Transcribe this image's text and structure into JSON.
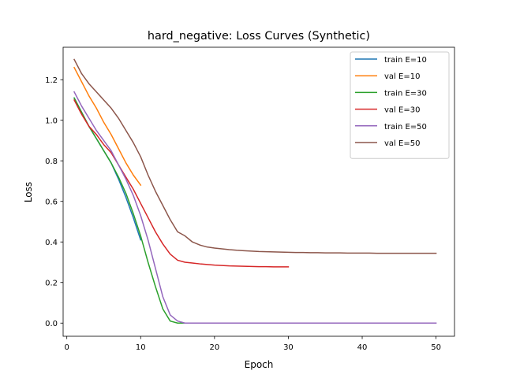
{
  "chart_data": {
    "type": "line",
    "title": "hard_negative: Loss Curves (Synthetic)",
    "xlabel": "Epoch",
    "ylabel": "Loss",
    "xlim": [
      -0.5,
      52.5
    ],
    "ylim": [
      -0.065,
      1.36
    ],
    "xticks": [
      0,
      10,
      20,
      30,
      40,
      50
    ],
    "xtick_labels": [
      "0",
      "10",
      "20",
      "30",
      "40",
      "50"
    ],
    "yticks": [
      0.0,
      0.2,
      0.4,
      0.6,
      0.8,
      1.0,
      1.2
    ],
    "ytick_labels": [
      "0.0",
      "0.2",
      "0.4",
      "0.6",
      "0.8",
      "1.0",
      "1.2"
    ],
    "grid": false,
    "legend_position": "upper right",
    "series": [
      {
        "name": "train E=10",
        "color": "#1f77b4",
        "x": [
          1,
          2,
          3,
          4,
          5,
          6,
          7,
          8,
          9,
          10
        ],
        "y": [
          1.11,
          1.04,
          0.97,
          0.91,
          0.85,
          0.79,
          0.71,
          0.62,
          0.52,
          0.41
        ]
      },
      {
        "name": "val E=10",
        "color": "#ff7f0e",
        "x": [
          1,
          2,
          3,
          4,
          5,
          6,
          7,
          8,
          9,
          10
        ],
        "y": [
          1.26,
          1.19,
          1.12,
          1.06,
          0.99,
          0.93,
          0.86,
          0.79,
          0.73,
          0.68
        ]
      },
      {
        "name": "train E=30",
        "color": "#2ca02c",
        "x": [
          1,
          2,
          3,
          4,
          5,
          6,
          7,
          8,
          9,
          10,
          11,
          12,
          13,
          14,
          15,
          16,
          17,
          18,
          19,
          20,
          21,
          22,
          23,
          24,
          25,
          26,
          27,
          28,
          29,
          30
        ],
        "y": [
          1.11,
          1.04,
          0.97,
          0.91,
          0.85,
          0.79,
          0.72,
          0.64,
          0.54,
          0.43,
          0.3,
          0.18,
          0.07,
          0.01,
          0.0,
          0.0,
          0.0,
          0.0,
          0.0,
          0.0,
          0.0,
          0.0,
          0.0,
          0.0,
          0.0,
          0.0,
          0.0,
          0.0,
          0.0,
          0.0
        ]
      },
      {
        "name": "val E=30",
        "color": "#d62728",
        "x": [
          1,
          2,
          3,
          4,
          5,
          6,
          7,
          8,
          9,
          10,
          11,
          12,
          13,
          14,
          15,
          16,
          17,
          18,
          19,
          20,
          21,
          22,
          23,
          24,
          25,
          26,
          27,
          28,
          29,
          30
        ],
        "y": [
          1.1,
          1.03,
          0.97,
          0.93,
          0.88,
          0.84,
          0.78,
          0.72,
          0.66,
          0.59,
          0.52,
          0.45,
          0.39,
          0.34,
          0.31,
          0.3,
          0.296,
          0.292,
          0.289,
          0.286,
          0.284,
          0.282,
          0.281,
          0.28,
          0.279,
          0.278,
          0.278,
          0.277,
          0.277,
          0.277
        ]
      },
      {
        "name": "train E=50",
        "color": "#9467bd",
        "x": [
          1,
          2,
          3,
          4,
          5,
          6,
          7,
          8,
          9,
          10,
          11,
          12,
          13,
          14,
          15,
          16,
          17,
          18,
          19,
          20,
          21,
          22,
          23,
          24,
          25,
          26,
          27,
          28,
          29,
          30,
          31,
          32,
          33,
          34,
          35,
          36,
          37,
          38,
          39,
          40,
          41,
          42,
          43,
          44,
          45,
          46,
          47,
          48,
          49,
          50
        ],
        "y": [
          1.14,
          1.07,
          1.01,
          0.95,
          0.9,
          0.85,
          0.78,
          0.71,
          0.63,
          0.53,
          0.41,
          0.27,
          0.13,
          0.04,
          0.01,
          0.0,
          0.0,
          0.0,
          0.0,
          0.0,
          0.0,
          0.0,
          0.0,
          0.0,
          0.0,
          0.0,
          0.0,
          0.0,
          0.0,
          0.0,
          0.0,
          0.0,
          0.0,
          0.0,
          0.0,
          0.0,
          0.0,
          0.0,
          0.0,
          0.0,
          0.0,
          0.0,
          0.0,
          0.0,
          0.0,
          0.0,
          0.0,
          0.0,
          0.0,
          0.0
        ]
      },
      {
        "name": "val E=50",
        "color": "#8c564b",
        "x": [
          1,
          2,
          3,
          4,
          5,
          6,
          7,
          8,
          9,
          10,
          11,
          12,
          13,
          14,
          15,
          16,
          17,
          18,
          19,
          20,
          21,
          22,
          23,
          24,
          25,
          26,
          27,
          28,
          29,
          30,
          31,
          32,
          33,
          34,
          35,
          36,
          37,
          38,
          39,
          40,
          41,
          42,
          43,
          44,
          45,
          46,
          47,
          48,
          49,
          50
        ],
        "y": [
          1.3,
          1.23,
          1.18,
          1.14,
          1.1,
          1.06,
          1.01,
          0.95,
          0.89,
          0.82,
          0.73,
          0.65,
          0.58,
          0.51,
          0.45,
          0.43,
          0.4,
          0.385,
          0.375,
          0.37,
          0.366,
          0.362,
          0.359,
          0.357,
          0.355,
          0.353,
          0.352,
          0.351,
          0.35,
          0.349,
          0.348,
          0.348,
          0.347,
          0.347,
          0.346,
          0.346,
          0.346,
          0.345,
          0.345,
          0.345,
          0.345,
          0.344,
          0.344,
          0.344,
          0.344,
          0.344,
          0.344,
          0.344,
          0.344,
          0.344
        ]
      }
    ]
  }
}
